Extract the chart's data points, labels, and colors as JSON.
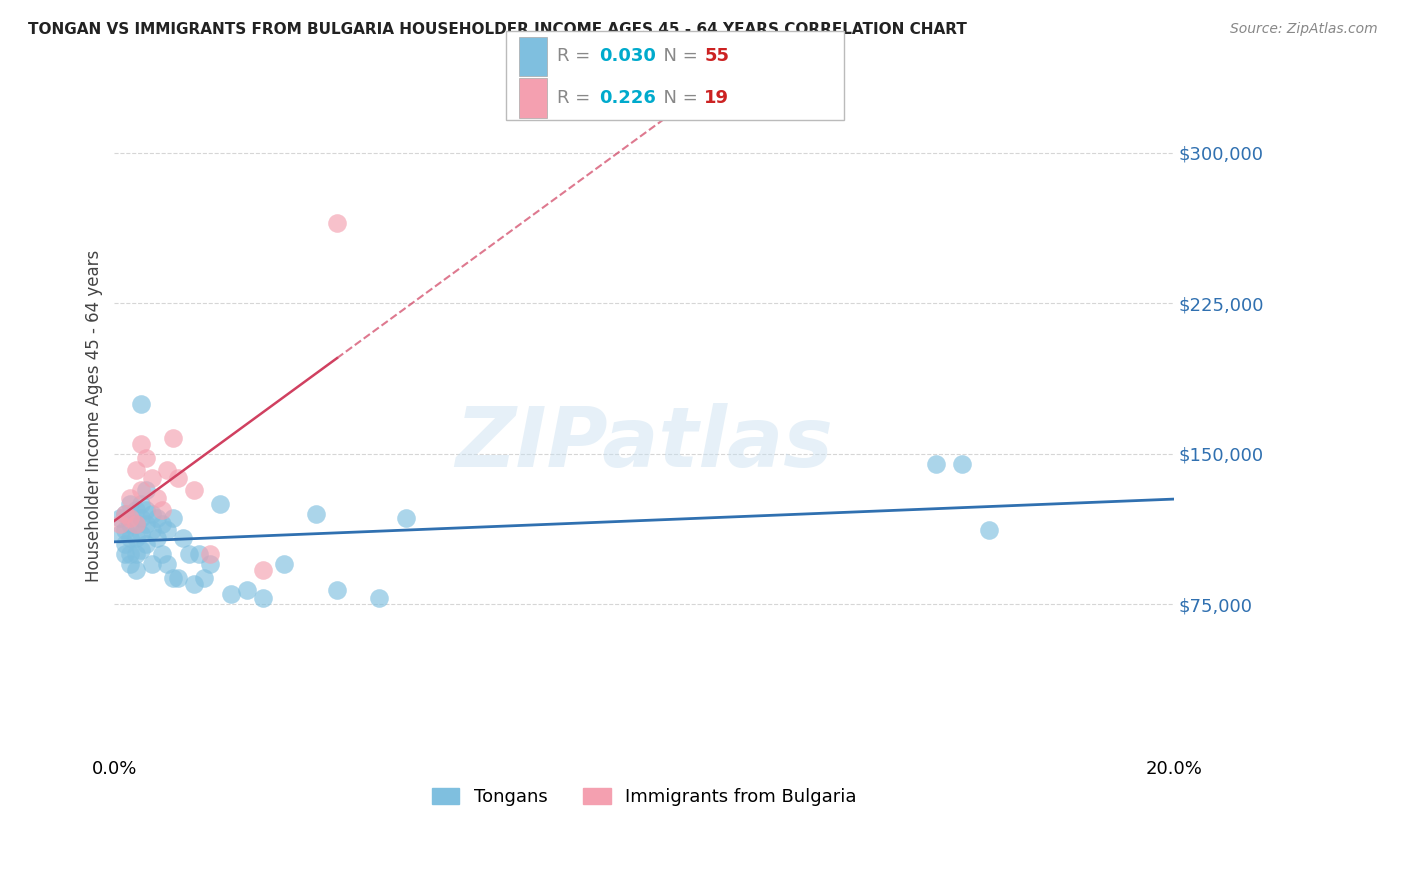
{
  "title": "TONGAN VS IMMIGRANTS FROM BULGARIA HOUSEHOLDER INCOME AGES 45 - 64 YEARS CORRELATION CHART",
  "source": "Source: ZipAtlas.com",
  "ylabel": "Householder Income Ages 45 - 64 years",
  "legend_label1": "Tongans",
  "legend_label2": "Immigrants from Bulgaria",
  "R1": 0.03,
  "N1": 55,
  "R2": 0.226,
  "N2": 19,
  "color1": "#7fbfdf",
  "color2": "#f4a0b0",
  "line1_color": "#3070b0",
  "line2_color": "#d04060",
  "xmin": 0.0,
  "xmax": 0.2,
  "ymin": 0,
  "ymax": 337500,
  "yticks": [
    75000,
    150000,
    225000,
    300000
  ],
  "ytick_labels": [
    "$75,000",
    "$150,000",
    "$225,000",
    "$300,000"
  ],
  "watermark": "ZIPatlas",
  "tongan_x": [
    0.001,
    0.001,
    0.002,
    0.002,
    0.002,
    0.002,
    0.003,
    0.003,
    0.003,
    0.003,
    0.003,
    0.004,
    0.004,
    0.004,
    0.004,
    0.004,
    0.005,
    0.005,
    0.005,
    0.005,
    0.005,
    0.006,
    0.006,
    0.006,
    0.006,
    0.007,
    0.007,
    0.007,
    0.008,
    0.008,
    0.009,
    0.009,
    0.01,
    0.01,
    0.011,
    0.011,
    0.012,
    0.013,
    0.014,
    0.015,
    0.016,
    0.017,
    0.018,
    0.02,
    0.022,
    0.025,
    0.028,
    0.032,
    0.038,
    0.042,
    0.05,
    0.055,
    0.155,
    0.16,
    0.165
  ],
  "tongan_y": [
    118000,
    110000,
    120000,
    112000,
    105000,
    100000,
    125000,
    115000,
    108000,
    100000,
    95000,
    122000,
    115000,
    108000,
    100000,
    92000,
    175000,
    125000,
    118000,
    110000,
    102000,
    132000,
    122000,
    115000,
    105000,
    120000,
    112000,
    95000,
    118000,
    108000,
    115000,
    100000,
    112000,
    95000,
    118000,
    88000,
    88000,
    108000,
    100000,
    85000,
    100000,
    88000,
    95000,
    125000,
    80000,
    82000,
    78000,
    95000,
    120000,
    82000,
    78000,
    118000,
    145000,
    145000,
    112000
  ],
  "bulgaria_x": [
    0.001,
    0.002,
    0.003,
    0.003,
    0.004,
    0.004,
    0.005,
    0.005,
    0.006,
    0.007,
    0.008,
    0.009,
    0.01,
    0.011,
    0.012,
    0.015,
    0.018,
    0.028,
    0.042
  ],
  "bulgaria_y": [
    115000,
    120000,
    128000,
    118000,
    142000,
    115000,
    155000,
    132000,
    148000,
    138000,
    128000,
    122000,
    142000,
    158000,
    138000,
    132000,
    100000,
    92000,
    265000
  ]
}
